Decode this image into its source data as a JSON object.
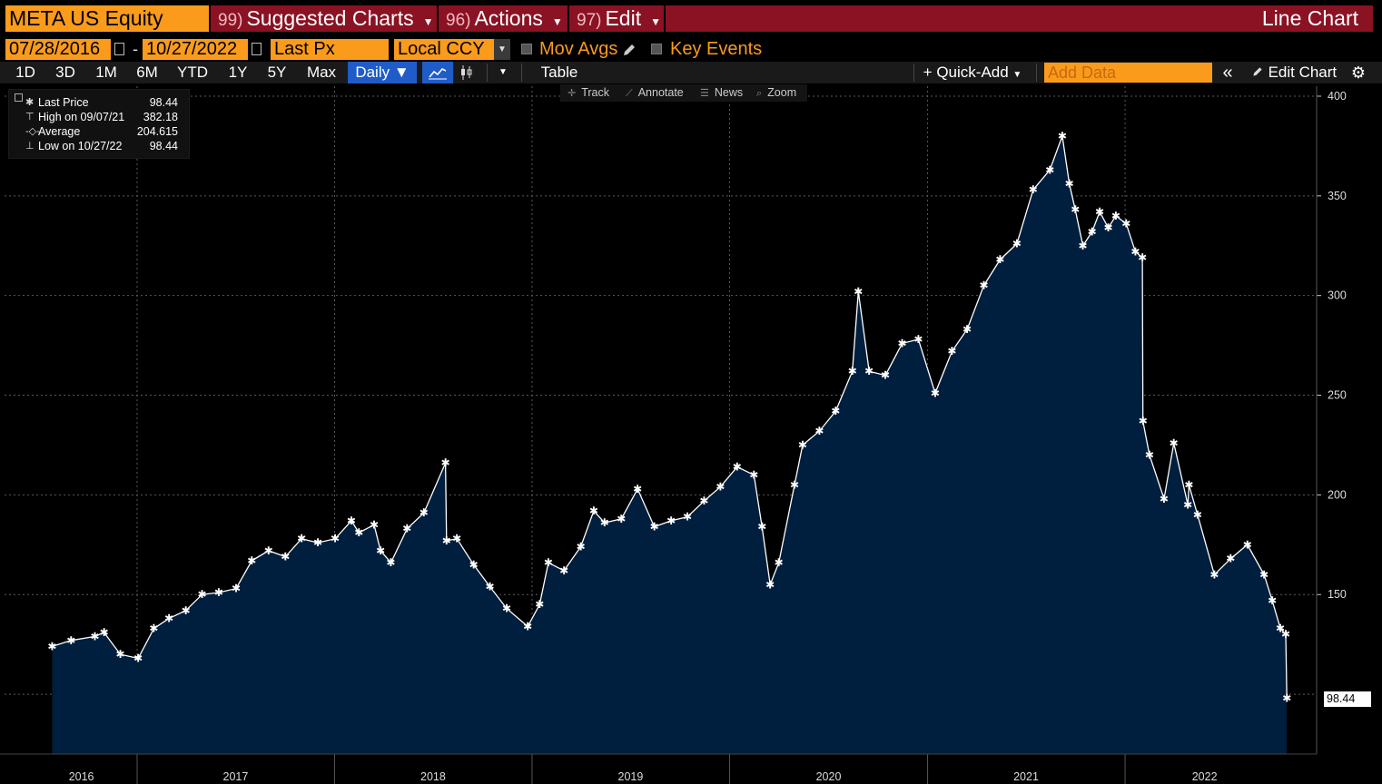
{
  "header": {
    "ticker": "META US Equity",
    "menu": [
      {
        "num": "99)",
        "label": "Suggested Charts"
      },
      {
        "num": "96)",
        "label": "Actions"
      },
      {
        "num": "97)",
        "label": "Edit"
      }
    ],
    "chart_type_label": "Line Chart"
  },
  "options": {
    "start_date": "07/28/2016",
    "end_date": "10/27/2022",
    "field": "Last Px",
    "currency": "Local CCY",
    "mov_avgs_label": "Mov Avgs",
    "key_events_label": "Key Events"
  },
  "toolbar": {
    "periods": [
      "1D",
      "3D",
      "1M",
      "6M",
      "YTD",
      "1Y",
      "5Y",
      "Max"
    ],
    "frequency": "Daily",
    "table_label": "Table",
    "quick_add_label": "+ Quick-Add",
    "add_data_placeholder": "Add Data",
    "edit_chart_label": "Edit Chart"
  },
  "chart_tools": [
    "Track",
    "Annotate",
    "News",
    "Zoom"
  ],
  "legend": [
    {
      "label": "Last Price",
      "value": "98.44"
    },
    {
      "label": "High on 09/07/21",
      "value": "382.18"
    },
    {
      "label": "Average",
      "value": "204.615"
    },
    {
      "label": "Low on 10/27/22",
      "value": "98.44"
    }
  ],
  "last_value_label": "98.44",
  "colors": {
    "area_fill": "#001e3d",
    "line": "#ffffff",
    "accent": "#fa9b1b",
    "menu_bg": "#8a1223"
  },
  "chart_data": {
    "type": "area",
    "title": "",
    "xlabel": "",
    "ylabel": "",
    "ylim": [
      70,
      405
    ],
    "yticks": [
      150,
      200,
      250,
      300,
      350,
      400
    ],
    "xticks": [
      "2016",
      "2017",
      "2018",
      "2019",
      "2020",
      "2021",
      "2022"
    ],
    "grid": true,
    "legend_position": "top-left",
    "series": [
      {
        "name": "Last Price",
        "x": [
          "2016-07-28",
          "2016-09-01",
          "2016-10-15",
          "2016-11-01",
          "2016-12-01",
          "2017-01-03",
          "2017-02-01",
          "2017-03-01",
          "2017-04-01",
          "2017-05-01",
          "2017-06-01",
          "2017-07-03",
          "2017-08-01",
          "2017-09-01",
          "2017-10-02",
          "2017-11-01",
          "2017-12-01",
          "2018-01-02",
          "2018-02-01",
          "2018-02-15",
          "2018-03-15",
          "2018-03-27",
          "2018-04-15",
          "2018-05-15",
          "2018-06-15",
          "2018-07-25",
          "2018-07-27",
          "2018-08-15",
          "2018-09-15",
          "2018-10-15",
          "2018-11-15",
          "2018-12-24",
          "2019-01-15",
          "2019-01-31",
          "2019-03-01",
          "2019-04-01",
          "2019-04-25",
          "2019-05-15",
          "2019-06-15",
          "2019-07-15",
          "2019-08-15",
          "2019-09-15",
          "2019-10-15",
          "2019-11-15",
          "2019-12-15",
          "2020-01-15",
          "2020-02-15",
          "2020-03-01",
          "2020-03-16",
          "2020-04-01",
          "2020-04-30",
          "2020-05-15",
          "2020-06-15",
          "2020-07-15",
          "2020-08-15",
          "2020-08-26",
          "2020-09-15",
          "2020-10-15",
          "2020-11-15",
          "2020-12-15",
          "2021-01-15",
          "2021-02-15",
          "2021-03-15",
          "2021-04-15",
          "2021-05-15",
          "2021-06-15",
          "2021-07-15",
          "2021-08-15",
          "2021-09-07",
          "2021-09-20",
          "2021-10-01",
          "2021-10-15",
          "2021-11-01",
          "2021-11-15",
          "2021-12-01",
          "2021-12-15",
          "2022-01-03",
          "2022-01-20",
          "2022-02-02",
          "2022-02-03",
          "2022-02-15",
          "2022-03-14",
          "2022-04-01",
          "2022-04-27",
          "2022-04-29",
          "2022-05-15",
          "2022-06-15",
          "2022-07-15",
          "2022-08-15",
          "2022-09-15",
          "2022-09-30",
          "2022-10-15",
          "2022-10-25",
          "2022-10-27"
        ],
        "y": [
          124,
          127,
          129,
          131,
          120,
          118,
          133,
          138,
          142,
          150,
          151,
          153,
          167,
          172,
          169,
          178,
          176,
          178,
          187,
          181,
          185,
          172,
          166,
          183,
          191,
          216,
          177,
          178,
          165,
          154,
          143,
          134,
          145,
          166,
          162,
          174,
          192,
          186,
          188,
          203,
          184,
          187,
          189,
          197,
          204,
          214,
          210,
          184,
          155,
          166,
          205,
          225,
          232,
          242,
          262,
          302,
          262,
          260,
          276,
          278,
          251,
          272,
          283,
          305,
          318,
          326,
          353,
          363,
          380,
          356,
          343,
          325,
          332,
          342,
          334,
          340,
          336,
          322,
          319,
          237,
          220,
          198,
          226,
          195,
          205,
          190,
          160,
          168,
          175,
          160,
          147,
          133,
          130,
          98
        ]
      }
    ]
  }
}
